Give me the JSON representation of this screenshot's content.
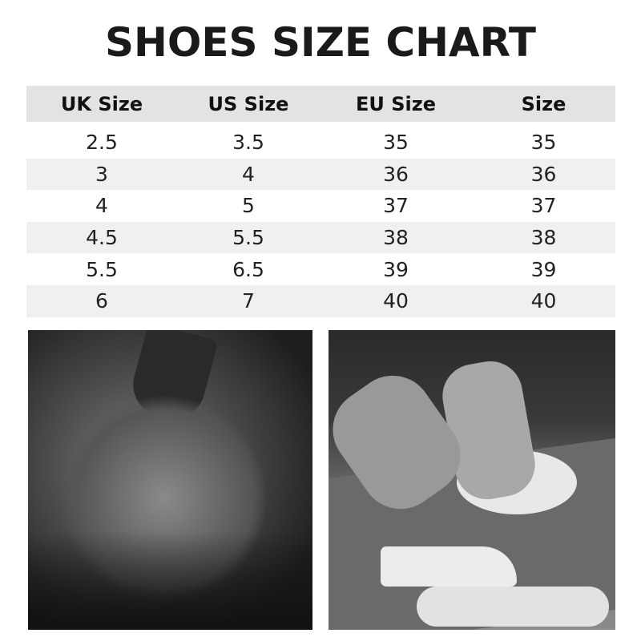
{
  "title": "SHOES SIZE CHART",
  "table": {
    "headers": [
      "UK Size",
      "US Size",
      "EU Size",
      "Size"
    ],
    "rows": [
      [
        "2.5",
        "3.5",
        "35",
        "35"
      ],
      [
        "3",
        "4",
        "36",
        "36"
      ],
      [
        "4",
        "5",
        "37",
        "37"
      ],
      [
        "4.5",
        "5.5",
        "38",
        "38"
      ],
      [
        "5.5",
        "6.5",
        "39",
        "39"
      ],
      [
        "6",
        "7",
        "40",
        "40"
      ]
    ]
  },
  "colors": {
    "header_bg": "#e3e3e3",
    "stripe_bg": "#f0f0f0",
    "text": "#1a1a1a"
  }
}
